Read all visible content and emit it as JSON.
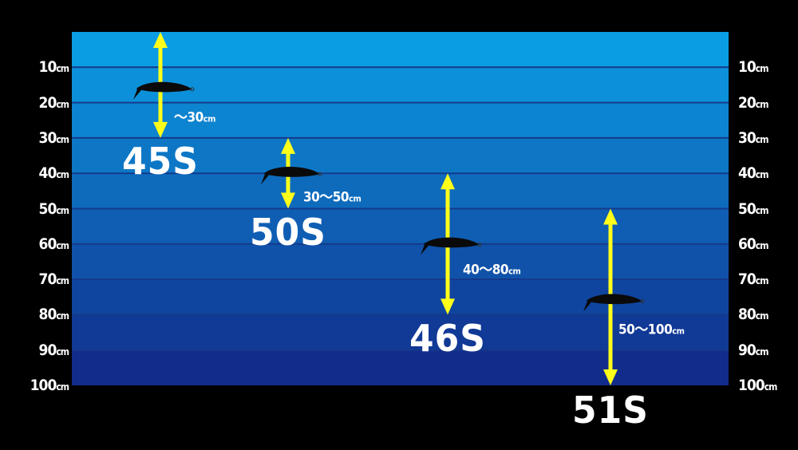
{
  "depth_unit": "cm",
  "depth_ticks": [
    10,
    20,
    30,
    40,
    50,
    60,
    70,
    80,
    90,
    100
  ],
  "colors": {
    "water_top": "#0b9de3",
    "water_bottom": "#122c8c",
    "grid": "#143a8a",
    "arrow": "#ffff1a",
    "lure": "#0a0a0a",
    "background": "#000000"
  },
  "lures": [
    {
      "model": "45S",
      "min": 0,
      "max": 30,
      "range_label": "～30",
      "lure_depth": 16
    },
    {
      "model": "50S",
      "min": 30,
      "max": 50,
      "range_label": "30～50",
      "lure_depth": 40
    },
    {
      "model": "46S",
      "min": 40,
      "max": 80,
      "range_label": "40～80",
      "lure_depth": 60
    },
    {
      "model": "51S",
      "min": 50,
      "max": 100,
      "range_label": "50～100",
      "lure_depth": 76
    }
  ]
}
